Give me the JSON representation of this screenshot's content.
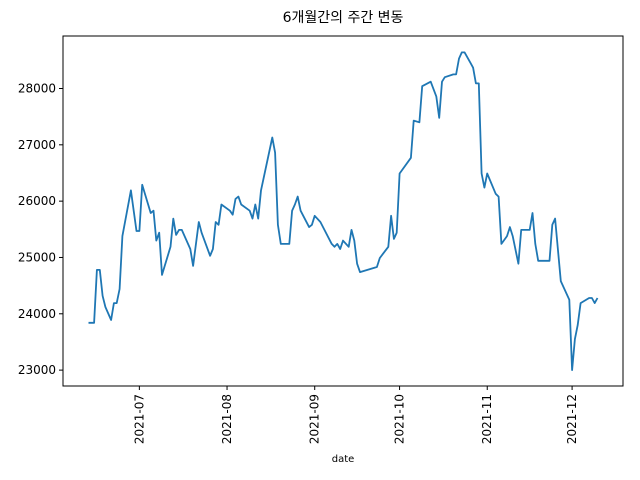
{
  "chart_data": {
    "type": "line",
    "title": "6개월간의 주간 변동",
    "x_label": "date",
    "x": [
      "2021-06-13",
      "2021-06-15",
      "2021-06-16",
      "2021-06-17",
      "2021-06-18",
      "2021-06-19",
      "2021-06-21",
      "2021-06-22",
      "2021-06-23",
      "2021-06-24",
      "2021-06-25",
      "2021-06-28",
      "2021-06-29",
      "2021-06-30",
      "2021-07-01",
      "2021-07-02",
      "2021-07-05",
      "2021-07-06",
      "2021-07-07",
      "2021-07-08",
      "2021-07-09",
      "2021-07-12",
      "2021-07-13",
      "2021-07-14",
      "2021-07-15",
      "2021-07-16",
      "2021-07-19",
      "2021-07-20",
      "2021-07-22",
      "2021-07-23",
      "2021-07-26",
      "2021-07-27",
      "2021-07-28",
      "2021-07-29",
      "2021-07-30",
      "2021-08-02",
      "2021-08-03",
      "2021-08-04",
      "2021-08-05",
      "2021-08-06",
      "2021-08-09",
      "2021-08-10",
      "2021-08-11",
      "2021-08-12",
      "2021-08-13",
      "2021-08-17",
      "2021-08-18",
      "2021-08-19",
      "2021-08-20",
      "2021-08-23",
      "2021-08-24",
      "2021-08-25",
      "2021-08-26",
      "2021-08-27",
      "2021-08-30",
      "2021-08-31",
      "2021-09-01",
      "2021-09-03",
      "2021-09-07",
      "2021-09-08",
      "2021-09-09",
      "2021-09-10",
      "2021-09-11",
      "2021-09-13",
      "2021-09-14",
      "2021-09-15",
      "2021-09-16",
      "2021-09-17",
      "2021-09-23",
      "2021-09-24",
      "2021-09-27",
      "2021-09-28",
      "2021-09-29",
      "2021-09-30",
      "2021-10-01",
      "2021-10-05",
      "2021-10-06",
      "2021-10-08",
      "2021-10-09",
      "2021-10-12",
      "2021-10-14",
      "2021-10-15",
      "2021-10-16",
      "2021-10-17",
      "2021-10-20",
      "2021-10-21",
      "2021-10-22",
      "2021-10-23",
      "2021-10-24",
      "2021-10-26",
      "2021-10-27",
      "2021-10-28",
      "2021-10-29",
      "2021-10-30",
      "2021-10-31",
      "2021-11-01",
      "2021-11-04",
      "2021-11-05",
      "2021-11-06",
      "2021-11-08",
      "2021-11-09",
      "2021-11-10",
      "2021-11-12",
      "2021-11-13",
      "2021-11-16",
      "2021-11-17",
      "2021-11-18",
      "2021-11-19",
      "2021-11-23",
      "2021-11-24",
      "2021-11-25",
      "2021-11-27",
      "2021-11-30",
      "2021-12-01",
      "2021-12-02",
      "2021-12-03",
      "2021-12-04",
      "2021-12-07",
      "2021-12-08",
      "2021-12-09",
      "2021-12-10"
    ],
    "series": [
      {
        "color": "#1f77b4",
        "values": [
          23840,
          23840,
          24780,
          24780,
          24320,
          24120,
          23890,
          24190,
          24190,
          24440,
          25380,
          26190,
          25830,
          25470,
          25470,
          26290,
          25790,
          25830,
          25300,
          25440,
          24690,
          25190,
          25690,
          25400,
          25490,
          25490,
          25150,
          24850,
          25630,
          25440,
          25030,
          25150,
          25630,
          25580,
          25940,
          25830,
          25760,
          26040,
          26080,
          25940,
          25830,
          25690,
          25940,
          25690,
          26190,
          27130,
          26860,
          25580,
          25240,
          25240,
          25830,
          25940,
          26080,
          25830,
          25540,
          25580,
          25740,
          25630,
          25240,
          25190,
          25240,
          25150,
          25300,
          25190,
          25490,
          25300,
          24890,
          24740,
          24830,
          24990,
          25190,
          25740,
          25330,
          25440,
          26490,
          26770,
          27430,
          27400,
          28040,
          28120,
          27860,
          27480,
          28120,
          28200,
          28250,
          28250,
          28530,
          28640,
          28640,
          28460,
          28370,
          28090,
          28090,
          26490,
          26240,
          26490,
          26130,
          26080,
          25240,
          25380,
          25540,
          25380,
          24890,
          25490,
          25490,
          25790,
          25240,
          24940,
          24940,
          25580,
          25690,
          24580,
          24250,
          23000,
          23550,
          23800,
          24190,
          24280,
          24280,
          24190,
          24280
        ]
      }
    ],
    "xlim": [
      "2021-06-04",
      "2021-12-19"
    ],
    "xticks": [
      {
        "value": "2021-07-01",
        "label": "2021-07"
      },
      {
        "value": "2021-08-01",
        "label": "2021-08"
      },
      {
        "value": "2021-09-01",
        "label": "2021-09"
      },
      {
        "value": "2021-10-01",
        "label": "2021-10"
      },
      {
        "value": "2021-11-01",
        "label": "2021-11"
      },
      {
        "value": "2021-12-01",
        "label": "2021-12"
      }
    ],
    "ylim": [
      22718,
      28932
    ],
    "yticks": [
      23000,
      24000,
      25000,
      26000,
      27000,
      28000
    ]
  }
}
